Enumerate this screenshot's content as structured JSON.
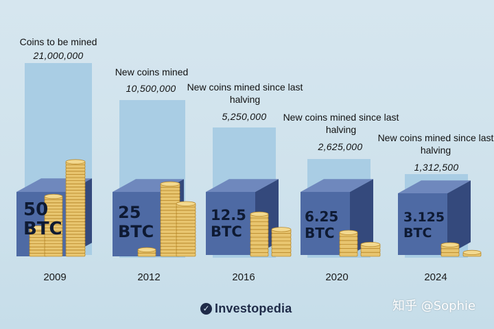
{
  "colors": {
    "panel": "#a9cde4",
    "cube_front": "#4e6aa4",
    "cube_top": "#6f88bd",
    "cube_side": "#34497c",
    "coin_fill": "#e8c56f",
    "coin_edge": "#b98a2c"
  },
  "eras": [
    {
      "year": "2009",
      "title": "Coins to be mined",
      "value": "21,000,000",
      "reward_amount": "50",
      "reward_unit": "BTC",
      "coin_stacks": [
        9,
        19,
        30
      ]
    },
    {
      "year": "2012",
      "title": "New coins mined",
      "value": "10,500,000",
      "reward_amount": "25",
      "reward_unit": "BTC",
      "coin_stacks": [
        2,
        22,
        16
      ]
    },
    {
      "year": "2016",
      "title": "New coins mined since last halving",
      "value": "5,250,000",
      "reward_amount": "12.5",
      "reward_unit": "BTC",
      "coin_stacks": [
        11,
        7
      ]
    },
    {
      "year": "2020",
      "title": "New coins mined since last halving",
      "value": "2,625,000",
      "reward_amount": "6.25",
      "reward_unit": "BTC",
      "coin_stacks": [
        6,
        3
      ]
    },
    {
      "year": "2024",
      "title": "New coins mined since last halving",
      "value": "1,312,500",
      "reward_amount": "3.125",
      "reward_unit": "BTC",
      "coin_stacks": [
        3,
        1
      ]
    }
  ],
  "brand": {
    "name": "Investopedia",
    "icon": "investopedia-logo-icon"
  },
  "watermark": "知乎 @Sophie"
}
